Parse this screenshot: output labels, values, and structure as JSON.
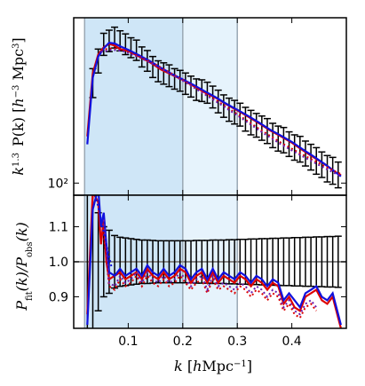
{
  "chart_data": [
    {
      "type": "line",
      "panel": "top",
      "ylabel": "k^{1.3} P(k) [h^{-3} Mpc^3]",
      "xlim": [
        0.0,
        0.5
      ],
      "ylim": [
        90,
        420
      ],
      "yscale": "log",
      "yticks": [
        {
          "value": 100,
          "label": "10²"
        }
      ],
      "shaded_bands": [
        {
          "range": [
            0.02,
            0.2
          ],
          "color": "#cfe6f7"
        },
        {
          "range": [
            0.2,
            0.3
          ],
          "color": "#e6f3fc"
        }
      ],
      "vlines": [
        0.02,
        0.2,
        0.3
      ],
      "series": [
        {
          "role": "observed",
          "color": "#000000",
          "style": "errorbar",
          "x": [
            0.035,
            0.045,
            0.055,
            0.065,
            0.075,
            0.085,
            0.095,
            0.105,
            0.115,
            0.125,
            0.135,
            0.145,
            0.155,
            0.165,
            0.175,
            0.185,
            0.195,
            0.205,
            0.215,
            0.225,
            0.235,
            0.245,
            0.255,
            0.265,
            0.275,
            0.285,
            0.295,
            0.305,
            0.315,
            0.325,
            0.335,
            0.345,
            0.355,
            0.365,
            0.375,
            0.385,
            0.395,
            0.405,
            0.415,
            0.425,
            0.435,
            0.445,
            0.455,
            0.465,
            0.475,
            0.485
          ],
          "y": [
            240,
            290,
            335,
            345,
            355,
            345,
            335,
            325,
            318,
            300,
            290,
            275,
            265,
            260,
            255,
            248,
            244,
            238,
            232,
            226,
            224,
            220,
            212,
            204,
            196,
            190,
            186,
            182,
            175,
            170,
            166,
            162,
            158,
            152,
            148,
            146,
            141,
            137,
            135,
            130,
            126,
            122,
            118,
            114,
            112,
            108
          ],
          "err": [
            30,
            30,
            32,
            32,
            32,
            30,
            30,
            28,
            28,
            26,
            26,
            25,
            24,
            24,
            24,
            22,
            22,
            22,
            21,
            21,
            21,
            20,
            20,
            20,
            19,
            19,
            19,
            18,
            18,
            18,
            17,
            17,
            17,
            16,
            16,
            16,
            15,
            15,
            15,
            14,
            14,
            14,
            13,
            13,
            13,
            12
          ]
        },
        {
          "role": "fit-1",
          "color": "#dd0000",
          "style": "solid",
          "x": [
            0.025,
            0.035,
            0.045,
            0.055,
            0.065,
            0.075,
            0.085,
            0.1,
            0.12,
            0.14,
            0.16,
            0.18,
            0.2,
            0.22,
            0.24,
            0.26,
            0.28,
            0.3,
            0.32,
            0.34,
            0.36,
            0.38,
            0.4,
            0.42,
            0.44,
            0.46,
            0.48,
            0.49
          ],
          "y": [
            150,
            260,
            305,
            325,
            335,
            330,
            320,
            315,
            300,
            285,
            268,
            256,
            245,
            232,
            220,
            210,
            198,
            188,
            178,
            168,
            158,
            150,
            142,
            133,
            125,
            118,
            110,
            107
          ]
        },
        {
          "role": "fit-2",
          "color": "#1010dd",
          "style": "solid",
          "x": [
            0.025,
            0.035,
            0.045,
            0.055,
            0.065,
            0.075,
            0.085,
            0.1,
            0.12,
            0.14,
            0.16,
            0.18,
            0.2,
            0.22,
            0.24,
            0.26,
            0.28,
            0.3,
            0.32,
            0.34,
            0.36,
            0.38,
            0.4,
            0.42,
            0.44,
            0.46,
            0.48,
            0.49
          ],
          "y": [
            140,
            250,
            300,
            322,
            338,
            336,
            328,
            318,
            303,
            288,
            272,
            258,
            246,
            234,
            222,
            211,
            199,
            189,
            179,
            169,
            159,
            151,
            143,
            134,
            126,
            118,
            110,
            106
          ]
        },
        {
          "role": "fit-1",
          "color": "#dd0000",
          "style": "dotted",
          "x": [
            0.05,
            0.07,
            0.09,
            0.12,
            0.15,
            0.2,
            0.25,
            0.3,
            0.34,
            0.38,
            0.42,
            0.46,
            0.49
          ],
          "y": [
            318,
            322,
            318,
            300,
            280,
            245,
            212,
            182,
            160,
            142,
            128,
            116,
            108
          ]
        },
        {
          "role": "fit-2",
          "color": "#6a1bb0",
          "style": "dotted",
          "x": [
            0.05,
            0.07,
            0.09,
            0.12,
            0.15,
            0.2,
            0.25,
            0.3,
            0.34,
            0.38,
            0.42,
            0.46,
            0.49
          ],
          "y": [
            312,
            318,
            315,
            298,
            278,
            243,
            210,
            180,
            158,
            140,
            126,
            114,
            106
          ]
        }
      ]
    },
    {
      "type": "line",
      "panel": "bottom",
      "xlabel": "k [hMpc^{-1}]",
      "ylabel": "P_fit(k)/P_obs(k)",
      "xlim": [
        0.0,
        0.5
      ],
      "ylim": [
        0.81,
        1.19
      ],
      "xticks": [
        {
          "value": 0.1,
          "label": "0.1"
        },
        {
          "value": 0.2,
          "label": "0.2"
        },
        {
          "value": 0.3,
          "label": "0.3"
        },
        {
          "value": 0.4,
          "label": "0.4"
        }
      ],
      "yticks": [
        {
          "value": 0.9,
          "label": "0.9"
        },
        {
          "value": 1.0,
          "label": "1.0"
        },
        {
          "value": 1.1,
          "label": "1.1"
        }
      ],
      "hline": 1.0,
      "series": [
        {
          "role": "observed-ratio",
          "color": "#000000",
          "style": "errorbar",
          "x": [
            0.025,
            0.035,
            0.045,
            0.055,
            0.065,
            0.075,
            0.085,
            0.095,
            0.105,
            0.115,
            0.125,
            0.135,
            0.145,
            0.155,
            0.165,
            0.175,
            0.185,
            0.195,
            0.205,
            0.215,
            0.225,
            0.235,
            0.245,
            0.255,
            0.265,
            0.275,
            0.285,
            0.295,
            0.305,
            0.315,
            0.325,
            0.335,
            0.345,
            0.355,
            0.365,
            0.375,
            0.385,
            0.395,
            0.405,
            0.415,
            0.425,
            0.435,
            0.445,
            0.455,
            0.465,
            0.475,
            0.485
          ],
          "y": [
            1,
            1,
            1,
            1,
            1,
            1,
            1,
            1,
            1,
            1,
            1,
            1,
            1,
            1,
            1,
            1,
            1,
            1,
            1,
            1,
            1,
            1,
            1,
            1,
            1,
            1,
            1,
            1,
            1,
            1,
            1,
            1,
            1,
            1,
            1,
            1,
            1,
            1,
            1,
            1,
            1,
            1,
            1,
            1,
            1,
            1,
            1
          ],
          "err": [
            0.35,
            0.25,
            0.14,
            0.1,
            0.09,
            0.075,
            0.07,
            0.068,
            0.066,
            0.064,
            0.062,
            0.062,
            0.061,
            0.06,
            0.06,
            0.06,
            0.06,
            0.06,
            0.06,
            0.06,
            0.061,
            0.061,
            0.061,
            0.062,
            0.062,
            0.062,
            0.063,
            0.063,
            0.064,
            0.064,
            0.065,
            0.065,
            0.066,
            0.066,
            0.067,
            0.067,
            0.068,
            0.068,
            0.069,
            0.069,
            0.07,
            0.07,
            0.071,
            0.071,
            0.072,
            0.072,
            0.073
          ]
        },
        {
          "role": "fit-1",
          "color": "#dd0000",
          "style": "solid",
          "x": [
            0.025,
            0.035,
            0.045,
            0.05,
            0.055,
            0.06,
            0.065,
            0.075,
            0.085,
            0.095,
            0.105,
            0.115,
            0.125,
            0.135,
            0.145,
            0.155,
            0.165,
            0.175,
            0.185,
            0.195,
            0.205,
            0.215,
            0.225,
            0.235,
            0.245,
            0.255,
            0.265,
            0.275,
            0.285,
            0.295,
            0.305,
            0.315,
            0.325,
            0.335,
            0.345,
            0.355,
            0.365,
            0.375,
            0.385,
            0.395,
            0.405,
            0.415,
            0.425,
            0.435,
            0.445,
            0.455,
            0.465,
            0.475,
            0.485,
            0.49
          ],
          "y": [
            0.85,
            1.2,
            1.17,
            1.05,
            1.12,
            1.0,
            0.95,
            0.96,
            0.97,
            0.95,
            0.96,
            0.97,
            0.95,
            0.98,
            0.96,
            0.95,
            0.97,
            0.95,
            0.96,
            0.98,
            0.97,
            0.94,
            0.96,
            0.97,
            0.94,
            0.97,
            0.94,
            0.96,
            0.95,
            0.94,
            0.96,
            0.95,
            0.93,
            0.95,
            0.94,
            0.92,
            0.94,
            0.93,
            0.88,
            0.9,
            0.87,
            0.86,
            0.9,
            0.91,
            0.92,
            0.89,
            0.88,
            0.9,
            0.84,
            0.81
          ]
        },
        {
          "role": "fit-2",
          "color": "#1010dd",
          "style": "solid",
          "x": [
            0.025,
            0.035,
            0.045,
            0.05,
            0.055,
            0.06,
            0.065,
            0.075,
            0.085,
            0.095,
            0.105,
            0.115,
            0.125,
            0.135,
            0.145,
            0.155,
            0.165,
            0.175,
            0.185,
            0.195,
            0.205,
            0.215,
            0.225,
            0.235,
            0.245,
            0.255,
            0.265,
            0.275,
            0.285,
            0.295,
            0.305,
            0.315,
            0.325,
            0.335,
            0.345,
            0.355,
            0.365,
            0.375,
            0.385,
            0.395,
            0.405,
            0.415,
            0.425,
            0.435,
            0.445,
            0.455,
            0.465,
            0.475,
            0.485,
            0.49
          ],
          "y": [
            0.82,
            1.15,
            1.21,
            1.1,
            1.14,
            1.05,
            0.97,
            0.96,
            0.98,
            0.96,
            0.97,
            0.98,
            0.96,
            0.99,
            0.97,
            0.96,
            0.98,
            0.96,
            0.97,
            0.99,
            0.98,
            0.95,
            0.97,
            0.98,
            0.95,
            0.98,
            0.95,
            0.97,
            0.96,
            0.95,
            0.97,
            0.96,
            0.94,
            0.96,
            0.95,
            0.93,
            0.95,
            0.94,
            0.89,
            0.91,
            0.89,
            0.87,
            0.91,
            0.92,
            0.93,
            0.9,
            0.89,
            0.91,
            0.85,
            0.82
          ]
        },
        {
          "role": "fit-1",
          "color": "#dd0000",
          "style": "dotted",
          "x": [
            0.055,
            0.065,
            0.075,
            0.085,
            0.095,
            0.105,
            0.115,
            0.125,
            0.135,
            0.145,
            0.155,
            0.165,
            0.175,
            0.185,
            0.195,
            0.205,
            0.215,
            0.225,
            0.235,
            0.245,
            0.255,
            0.265,
            0.275,
            0.285,
            0.295,
            0.305,
            0.315,
            0.325,
            0.335,
            0.345,
            0.355,
            0.365,
            0.375,
            0.385,
            0.395,
            0.405,
            0.415,
            0.425,
            0.435,
            0.445
          ],
          "y": [
            1.08,
            0.93,
            0.92,
            0.95,
            0.93,
            0.94,
            0.96,
            0.93,
            0.96,
            0.94,
            0.93,
            0.95,
            0.93,
            0.94,
            0.96,
            0.94,
            0.92,
            0.94,
            0.95,
            0.91,
            0.95,
            0.92,
            0.93,
            0.92,
            0.91,
            0.93,
            0.92,
            0.9,
            0.92,
            0.91,
            0.89,
            0.91,
            0.9,
            0.86,
            0.88,
            0.85,
            0.84,
            0.87,
            0.88,
            0.86
          ]
        },
        {
          "role": "fit-2",
          "color": "#6a1bb0",
          "style": "dotted",
          "x": [
            0.055,
            0.065,
            0.075,
            0.085,
            0.095,
            0.105,
            0.115,
            0.125,
            0.135,
            0.145,
            0.155,
            0.165,
            0.175,
            0.185,
            0.195,
            0.205,
            0.215,
            0.225,
            0.235,
            0.245,
            0.255,
            0.265,
            0.275,
            0.285,
            0.295,
            0.305,
            0.315,
            0.325,
            0.335,
            0.345,
            0.355,
            0.365,
            0.375,
            0.385,
            0.395,
            0.405,
            0.415,
            0.425,
            0.435,
            0.445
          ],
          "y": [
            1.12,
            0.94,
            0.93,
            0.96,
            0.94,
            0.95,
            0.97,
            0.94,
            0.97,
            0.95,
            0.94,
            0.96,
            0.94,
            0.95,
            0.97,
            0.95,
            0.93,
            0.95,
            0.96,
            0.92,
            0.96,
            0.93,
            0.94,
            0.93,
            0.92,
            0.94,
            0.93,
            0.91,
            0.93,
            0.92,
            0.9,
            0.92,
            0.91,
            0.87,
            0.89,
            0.86,
            0.85,
            0.88,
            0.89,
            0.87
          ]
        },
        {
          "role": "fit-2",
          "color": "#1010dd",
          "style": "dotted",
          "x": [
            0.04,
            0.05,
            0.06,
            0.07
          ],
          "y": [
            1.19,
            1.12,
            1.05,
            0.98
          ]
        }
      ]
    }
  ]
}
